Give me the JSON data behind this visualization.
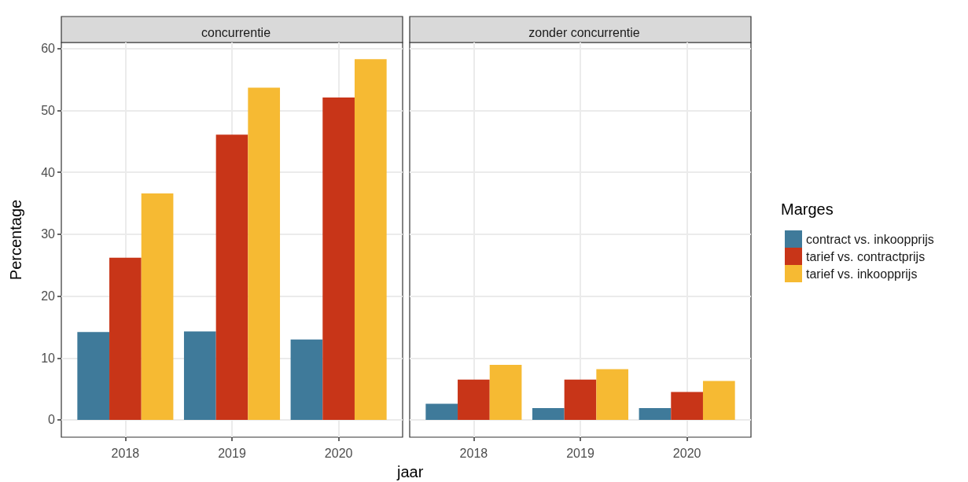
{
  "chart_data": [
    {
      "type": "bar",
      "title": "concurrentie",
      "xlabel": "jaar",
      "ylabel": "Percentage",
      "categories": [
        "2018",
        "2019",
        "2020"
      ],
      "series": [
        {
          "color": "#3f7a9a",
          "values": [
            14.2,
            14.3,
            13.0
          ]
        },
        {
          "color": "#c83518",
          "values": [
            26.2,
            46.1,
            52.1
          ]
        },
        {
          "color": "#f6ba33",
          "values": [
            36.6,
            53.7,
            58.3
          ]
        }
      ],
      "ylim": [
        -2.8,
        61
      ],
      "yticks": [
        0,
        10,
        20,
        30,
        40,
        50,
        60
      ],
      "grid": true,
      "legend": false
    },
    {
      "type": "bar",
      "title": "zonder concurrentie",
      "legend_title": "Marges",
      "categories": [
        "2018",
        "2019",
        "2020"
      ],
      "series": [
        {
          "name": "contract vs. inkoopprijs",
          "color": "#3f7a9a",
          "values": [
            2.6,
            1.9,
            1.9
          ]
        },
        {
          "name": "tarief vs. contractprijs",
          "color": "#c83518",
          "values": [
            6.5,
            6.5,
            4.5
          ]
        },
        {
          "name": "tarief vs. inkoopprijs",
          "color": "#f6ba33",
          "values": [
            8.9,
            8.2,
            6.3
          ]
        }
      ],
      "ylim": [
        -2.8,
        61
      ],
      "yticks": [
        0,
        10,
        20,
        30,
        40,
        50,
        60
      ],
      "grid": true,
      "legend": "right",
      "tick_labels": "x"
    }
  ]
}
